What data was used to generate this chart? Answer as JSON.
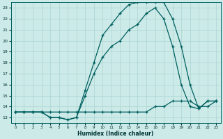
{
  "xlabel": "Humidex (Indice chaleur)",
  "bg_color": "#cceae8",
  "grid_color": "#aad4d0",
  "line_color": "#006060",
  "xlim": [
    -0.5,
    23.5
  ],
  "ylim": [
    12.5,
    23.5
  ],
  "yticks": [
    13,
    14,
    15,
    16,
    17,
    18,
    19,
    20,
    21,
    22,
    23
  ],
  "xticks": [
    0,
    1,
    2,
    3,
    4,
    5,
    6,
    7,
    8,
    9,
    10,
    11,
    12,
    13,
    14,
    15,
    16,
    17,
    18,
    19,
    20,
    21,
    22,
    23
  ],
  "line1_x": [
    0,
    1,
    2,
    3,
    4,
    5,
    6,
    7,
    8,
    9,
    10,
    11,
    12,
    13,
    14,
    15,
    16,
    17,
    18,
    19,
    20,
    21,
    22,
    23
  ],
  "line1_y": [
    13.5,
    13.5,
    13.5,
    13.5,
    13.5,
    13.5,
    13.5,
    13.5,
    13.5,
    13.5,
    13.5,
    13.5,
    13.5,
    13.5,
    13.5,
    13.5,
    14.0,
    14.0,
    14.5,
    14.5,
    14.5,
    14.0,
    14.0,
    14.5
  ],
  "line2_x": [
    0,
    1,
    2,
    3,
    4,
    5,
    6,
    7,
    8,
    9,
    10,
    11,
    12,
    13,
    14,
    15,
    16,
    17,
    18,
    19,
    20,
    21,
    22,
    23
  ],
  "line2_y": [
    13.5,
    13.5,
    13.5,
    13.5,
    13.0,
    13.0,
    12.8,
    13.0,
    15.0,
    17.0,
    18.5,
    19.5,
    20.0,
    21.0,
    21.5,
    22.5,
    23.0,
    22.0,
    19.5,
    16.0,
    14.0,
    13.8,
    14.5,
    14.5
  ],
  "line3_x": [
    0,
    1,
    2,
    3,
    4,
    5,
    6,
    7,
    8,
    9,
    10,
    11,
    12,
    13,
    14,
    15,
    16,
    17,
    18,
    19,
    20,
    21,
    22,
    23
  ],
  "line3_y": [
    13.5,
    13.5,
    13.5,
    13.5,
    13.0,
    13.0,
    12.8,
    13.0,
    15.5,
    18.0,
    20.5,
    21.5,
    22.5,
    23.3,
    23.5,
    23.5,
    23.5,
    23.5,
    22.0,
    19.5,
    16.0,
    13.8,
    14.5,
    14.5
  ]
}
